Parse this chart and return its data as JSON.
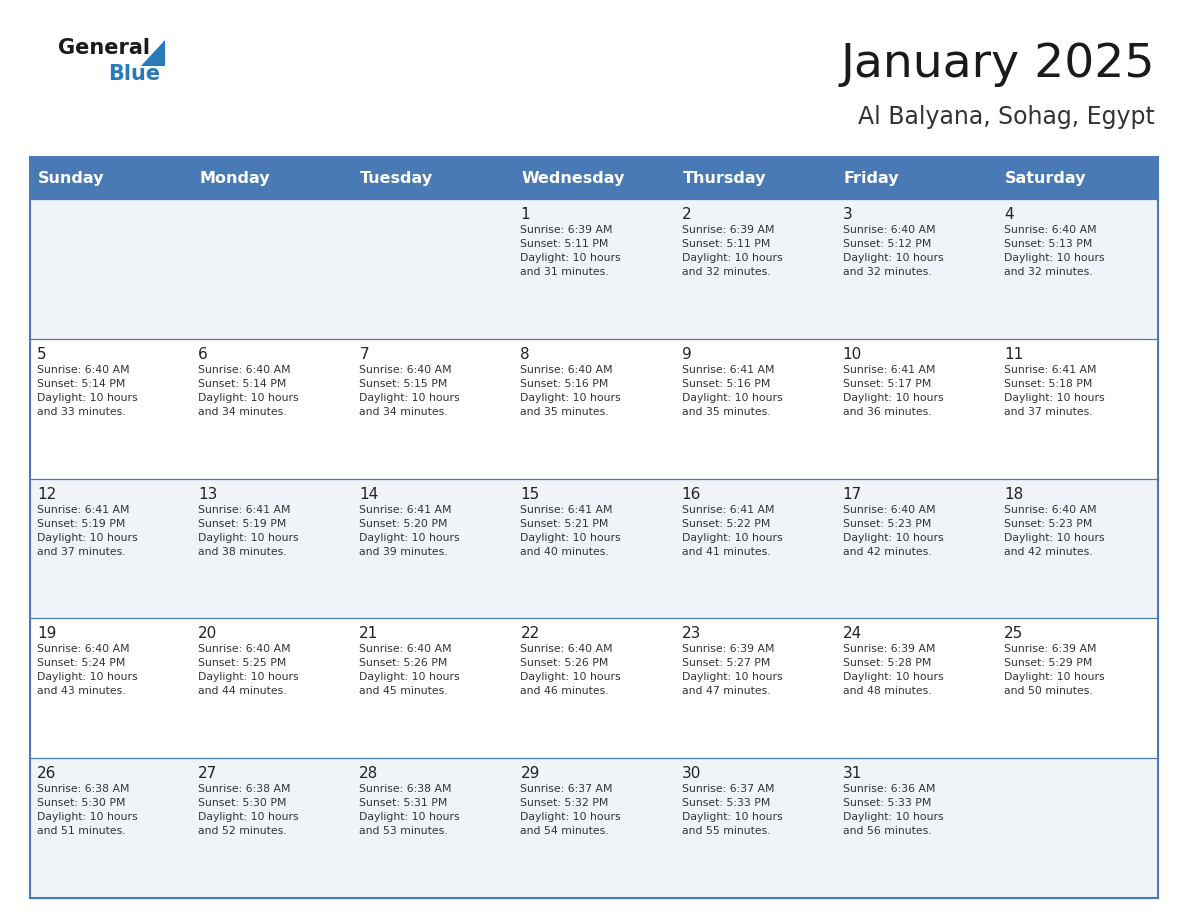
{
  "title": "January 2025",
  "subtitle": "Al Balyana, Sohag, Egypt",
  "days_of_week": [
    "Sunday",
    "Monday",
    "Tuesday",
    "Wednesday",
    "Thursday",
    "Friday",
    "Saturday"
  ],
  "header_bg": "#4a7ab5",
  "header_text": "#ffffff",
  "row0_bg": "#f0f4f8",
  "row1_bg": "#ffffff",
  "line_color": "#4a7ab5",
  "day_num_color": "#222222",
  "text_color": "#333333",
  "title_color": "#1a1a1a",
  "subtitle_color": "#333333",
  "logo_general_color": "#1a1a1a",
  "logo_blue_color": "#2a7ab8",
  "calendar_data": [
    [
      {
        "day": "",
        "info": ""
      },
      {
        "day": "",
        "info": ""
      },
      {
        "day": "",
        "info": ""
      },
      {
        "day": "1",
        "info": "Sunrise: 6:39 AM\nSunset: 5:11 PM\nDaylight: 10 hours\nand 31 minutes."
      },
      {
        "day": "2",
        "info": "Sunrise: 6:39 AM\nSunset: 5:11 PM\nDaylight: 10 hours\nand 32 minutes."
      },
      {
        "day": "3",
        "info": "Sunrise: 6:40 AM\nSunset: 5:12 PM\nDaylight: 10 hours\nand 32 minutes."
      },
      {
        "day": "4",
        "info": "Sunrise: 6:40 AM\nSunset: 5:13 PM\nDaylight: 10 hours\nand 32 minutes."
      }
    ],
    [
      {
        "day": "5",
        "info": "Sunrise: 6:40 AM\nSunset: 5:14 PM\nDaylight: 10 hours\nand 33 minutes."
      },
      {
        "day": "6",
        "info": "Sunrise: 6:40 AM\nSunset: 5:14 PM\nDaylight: 10 hours\nand 34 minutes."
      },
      {
        "day": "7",
        "info": "Sunrise: 6:40 AM\nSunset: 5:15 PM\nDaylight: 10 hours\nand 34 minutes."
      },
      {
        "day": "8",
        "info": "Sunrise: 6:40 AM\nSunset: 5:16 PM\nDaylight: 10 hours\nand 35 minutes."
      },
      {
        "day": "9",
        "info": "Sunrise: 6:41 AM\nSunset: 5:16 PM\nDaylight: 10 hours\nand 35 minutes."
      },
      {
        "day": "10",
        "info": "Sunrise: 6:41 AM\nSunset: 5:17 PM\nDaylight: 10 hours\nand 36 minutes."
      },
      {
        "day": "11",
        "info": "Sunrise: 6:41 AM\nSunset: 5:18 PM\nDaylight: 10 hours\nand 37 minutes."
      }
    ],
    [
      {
        "day": "12",
        "info": "Sunrise: 6:41 AM\nSunset: 5:19 PM\nDaylight: 10 hours\nand 37 minutes."
      },
      {
        "day": "13",
        "info": "Sunrise: 6:41 AM\nSunset: 5:19 PM\nDaylight: 10 hours\nand 38 minutes."
      },
      {
        "day": "14",
        "info": "Sunrise: 6:41 AM\nSunset: 5:20 PM\nDaylight: 10 hours\nand 39 minutes."
      },
      {
        "day": "15",
        "info": "Sunrise: 6:41 AM\nSunset: 5:21 PM\nDaylight: 10 hours\nand 40 minutes."
      },
      {
        "day": "16",
        "info": "Sunrise: 6:41 AM\nSunset: 5:22 PM\nDaylight: 10 hours\nand 41 minutes."
      },
      {
        "day": "17",
        "info": "Sunrise: 6:40 AM\nSunset: 5:23 PM\nDaylight: 10 hours\nand 42 minutes."
      },
      {
        "day": "18",
        "info": "Sunrise: 6:40 AM\nSunset: 5:23 PM\nDaylight: 10 hours\nand 42 minutes."
      }
    ],
    [
      {
        "day": "19",
        "info": "Sunrise: 6:40 AM\nSunset: 5:24 PM\nDaylight: 10 hours\nand 43 minutes."
      },
      {
        "day": "20",
        "info": "Sunrise: 6:40 AM\nSunset: 5:25 PM\nDaylight: 10 hours\nand 44 minutes."
      },
      {
        "day": "21",
        "info": "Sunrise: 6:40 AM\nSunset: 5:26 PM\nDaylight: 10 hours\nand 45 minutes."
      },
      {
        "day": "22",
        "info": "Sunrise: 6:40 AM\nSunset: 5:26 PM\nDaylight: 10 hours\nand 46 minutes."
      },
      {
        "day": "23",
        "info": "Sunrise: 6:39 AM\nSunset: 5:27 PM\nDaylight: 10 hours\nand 47 minutes."
      },
      {
        "day": "24",
        "info": "Sunrise: 6:39 AM\nSunset: 5:28 PM\nDaylight: 10 hours\nand 48 minutes."
      },
      {
        "day": "25",
        "info": "Sunrise: 6:39 AM\nSunset: 5:29 PM\nDaylight: 10 hours\nand 50 minutes."
      }
    ],
    [
      {
        "day": "26",
        "info": "Sunrise: 6:38 AM\nSunset: 5:30 PM\nDaylight: 10 hours\nand 51 minutes."
      },
      {
        "day": "27",
        "info": "Sunrise: 6:38 AM\nSunset: 5:30 PM\nDaylight: 10 hours\nand 52 minutes."
      },
      {
        "day": "28",
        "info": "Sunrise: 6:38 AM\nSunset: 5:31 PM\nDaylight: 10 hours\nand 53 minutes."
      },
      {
        "day": "29",
        "info": "Sunrise: 6:37 AM\nSunset: 5:32 PM\nDaylight: 10 hours\nand 54 minutes."
      },
      {
        "day": "30",
        "info": "Sunrise: 6:37 AM\nSunset: 5:33 PM\nDaylight: 10 hours\nand 55 minutes."
      },
      {
        "day": "31",
        "info": "Sunrise: 6:36 AM\nSunset: 5:33 PM\nDaylight: 10 hours\nand 56 minutes."
      },
      {
        "day": "",
        "info": ""
      }
    ]
  ]
}
